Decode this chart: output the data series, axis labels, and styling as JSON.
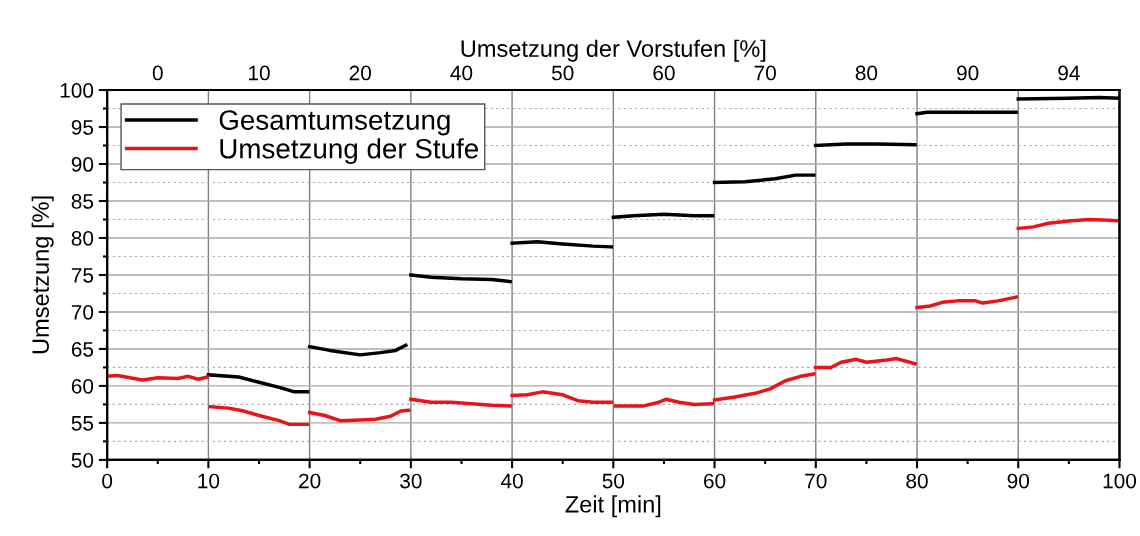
{
  "chart_data": {
    "type": "line",
    "xlabel": "Zeit [min]",
    "ylabel": "Umsetzung [%]",
    "x2label": "Umsetzung der Vorstufen [%]",
    "xlim": [
      0,
      100
    ],
    "ylim": [
      50,
      100
    ],
    "xticks": [
      0,
      {
        "value": 5,
        "label": null
      },
      10,
      {
        "value": 15,
        "label": null
      },
      20,
      {
        "value": 25,
        "label": null
      },
      30,
      {
        "value": 35,
        "label": null
      },
      40,
      {
        "value": 45,
        "label": null
      },
      50,
      {
        "value": 55,
        "label": null
      },
      60,
      {
        "value": 65,
        "label": null
      },
      70,
      {
        "value": 75,
        "label": null
      },
      80,
      {
        "value": 85,
        "label": null
      },
      90,
      {
        "value": 95,
        "label": null
      },
      100
    ],
    "yticks": [
      50,
      {
        "value": 52.5,
        "label": null
      },
      55,
      {
        "value": 57.5,
        "label": null
      },
      60,
      {
        "value": 62.5,
        "label": null
      },
      65,
      {
        "value": 67.5,
        "label": null
      },
      70,
      {
        "value": 72.5,
        "label": null
      },
      75,
      {
        "value": 77.5,
        "label": null
      },
      80,
      {
        "value": 82.5,
        "label": null
      },
      85,
      {
        "value": 87.5,
        "label": null
      },
      90,
      {
        "value": 92.5,
        "label": null
      },
      95,
      {
        "value": 97.5,
        "label": null
      },
      100
    ],
    "annotations": [
      "0",
      "10",
      "20",
      "40",
      "50",
      "60",
      "70",
      "80",
      "90",
      "94"
    ],
    "grid": true,
    "legend": "top left",
    "marker": "none",
    "line_style": "solid",
    "series": [
      {
        "name": "Gesamtumsetzung",
        "color": "#000000",
        "x": [
          10,
          13,
          15,
          17,
          18.5,
          19.8,
          19.9,
          20,
          22,
          25,
          27,
          28.5,
          29.5,
          29.9,
          30,
          32,
          35,
          38,
          39.8,
          39.9,
          40,
          42.5,
          45,
          48,
          49.8,
          49.9,
          50,
          52,
          55,
          58,
          59.8,
          59.9,
          60,
          63,
          66,
          68,
          69.8,
          69.9,
          70,
          73,
          76,
          79.8,
          79.9,
          80,
          81,
          89.8,
          89.9,
          90,
          95,
          98,
          100
        ],
        "values": [
          61.5,
          61.2,
          60.5,
          59.8,
          59.2,
          59.2,
          null,
          65.3,
          64.8,
          64.2,
          64.5,
          64.8,
          65.5,
          null,
          75,
          74.7,
          74.5,
          74.4,
          74.1,
          null,
          79.3,
          79.5,
          79.2,
          78.9,
          78.8,
          null,
          82.8,
          83,
          83.2,
          83,
          83,
          null,
          87.5,
          87.6,
          88,
          88.5,
          88.5,
          null,
          92.5,
          92.7,
          92.7,
          92.6,
          null,
          96.8,
          97,
          97,
          null,
          98.8,
          98.9,
          99,
          98.9
        ]
      },
      {
        "name": "Umsetzung der Stufe",
        "color": "#e8141b",
        "x": [
          0,
          1,
          3.5,
          5,
          7,
          8,
          9,
          9.9,
          10.0,
          10.2,
          12,
          13.5,
          15,
          17,
          18,
          19.8,
          19.9,
          20,
          21.5,
          23,
          25,
          26.5,
          28,
          29,
          29.8,
          29.9,
          30,
          32,
          34,
          36,
          38,
          39.8,
          39.9,
          40,
          41.5,
          43,
          45,
          46.5,
          48,
          49.8,
          49.9,
          50.2,
          53,
          54.5,
          55.2,
          56.5,
          58,
          59.8,
          59.9,
          60,
          62,
          64,
          65.5,
          67,
          68.5,
          69.8,
          69.9,
          70,
          71.5,
          72.5,
          74,
          75,
          77,
          78,
          79.8,
          79.9,
          80,
          81.3,
          82.5,
          84,
          85.8,
          86.5,
          88,
          89.8,
          89.9,
          90,
          91.5,
          93,
          95,
          97,
          99,
          100
        ],
        "values": [
          61.3,
          61.4,
          60.8,
          61.1,
          61,
          61.3,
          60.9,
          61.2,
          null,
          57.2,
          57,
          56.6,
          56,
          55.3,
          54.8,
          54.8,
          null,
          56.4,
          56,
          55.3,
          55.4,
          55.5,
          55.9,
          56.6,
          56.7,
          null,
          58.2,
          57.8,
          57.8,
          57.6,
          57.4,
          57.3,
          null,
          58.7,
          58.8,
          59.2,
          58.8,
          58,
          57.8,
          57.8,
          null,
          57.3,
          57.3,
          57.8,
          58.2,
          57.8,
          57.5,
          57.6,
          null,
          58.1,
          58.5,
          59,
          59.6,
          60.7,
          61.3,
          61.6,
          null,
          62.5,
          62.5,
          63.2,
          63.6,
          63.2,
          63.5,
          63.7,
          63,
          null,
          70.6,
          70.8,
          71.3,
          71.5,
          71.5,
          71.2,
          71.5,
          72,
          null,
          81.3,
          81.5,
          82,
          82.3,
          82.5,
          82.4,
          82.3
        ]
      }
    ]
  }
}
